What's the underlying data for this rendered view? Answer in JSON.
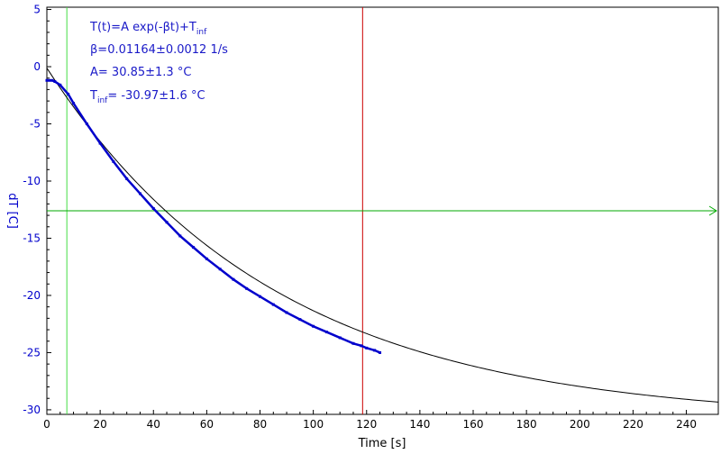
{
  "chart_data": {
    "type": "line",
    "xlabel": "Time [s]",
    "ylabel": "dT [C]",
    "xlim": [
      0,
      252
    ],
    "ylim": [
      -30.4,
      5.2
    ],
    "x_ticks": [
      "0",
      "20",
      "40",
      "60",
      "80",
      "100",
      "120",
      "140",
      "160",
      "180",
      "200",
      "220",
      "240"
    ],
    "y_ticks": [
      "5",
      "0",
      "-5",
      "-10",
      "-15",
      "-20",
      "-25",
      "-30"
    ],
    "x_tick_values": [
      0,
      20,
      40,
      60,
      80,
      100,
      120,
      140,
      160,
      180,
      200,
      220,
      240
    ],
    "y_tick_values": [
      5,
      0,
      -5,
      -10,
      -15,
      -20,
      -25,
      -30
    ],
    "fit": {
      "model": "T(t)=A exp(-βt)+T_inf",
      "beta": 0.01164,
      "A": 30.85,
      "T_inf": -30.97,
      "x_range": [
        0,
        252
      ]
    },
    "series": [
      {
        "color": "#0000cc",
        "x": [
          0,
          1,
          2,
          3,
          5,
          8,
          10,
          15,
          20,
          25,
          30,
          35,
          40,
          45,
          50,
          55,
          60,
          65,
          70,
          75,
          80,
          85,
          90,
          95,
          100,
          105,
          110,
          115,
          118,
          120,
          123,
          125
        ],
        "y": [
          -1.2,
          -1.2,
          -1.2,
          -1.3,
          -1.6,
          -2.4,
          -3.2,
          -5.0,
          -6.7,
          -8.3,
          -9.8,
          -11.1,
          -12.4,
          -13.6,
          -14.8,
          -15.8,
          -16.8,
          -17.7,
          -18.6,
          -19.4,
          -20.1,
          -20.8,
          -21.5,
          -22.1,
          -22.7,
          -23.2,
          -23.7,
          -24.2,
          -24.4,
          -24.6,
          -24.8,
          -25.0
        ]
      }
    ],
    "annotations": {
      "line1": "T(t)=A exp(-βt)+T",
      "line1_sub": "inf",
      "line2": "β=0.01164±0.0012 1/s",
      "line3": "A= 30.85±1.3 °C",
      "line4_main": "T",
      "line4_sub": "inf",
      "line4_rest": "= -30.97±1.6 °C"
    },
    "markers": {
      "vertical_green_x": 7.5,
      "vertical_red_x": 118.5,
      "horizontal_green_y": -12.6
    },
    "colors": {
      "data": "#0000cc",
      "fit": "#000000",
      "green": "#00aa00",
      "light_green": "#44dd44",
      "red": "#cc0000",
      "y_axis_text": "#0000cc"
    }
  }
}
